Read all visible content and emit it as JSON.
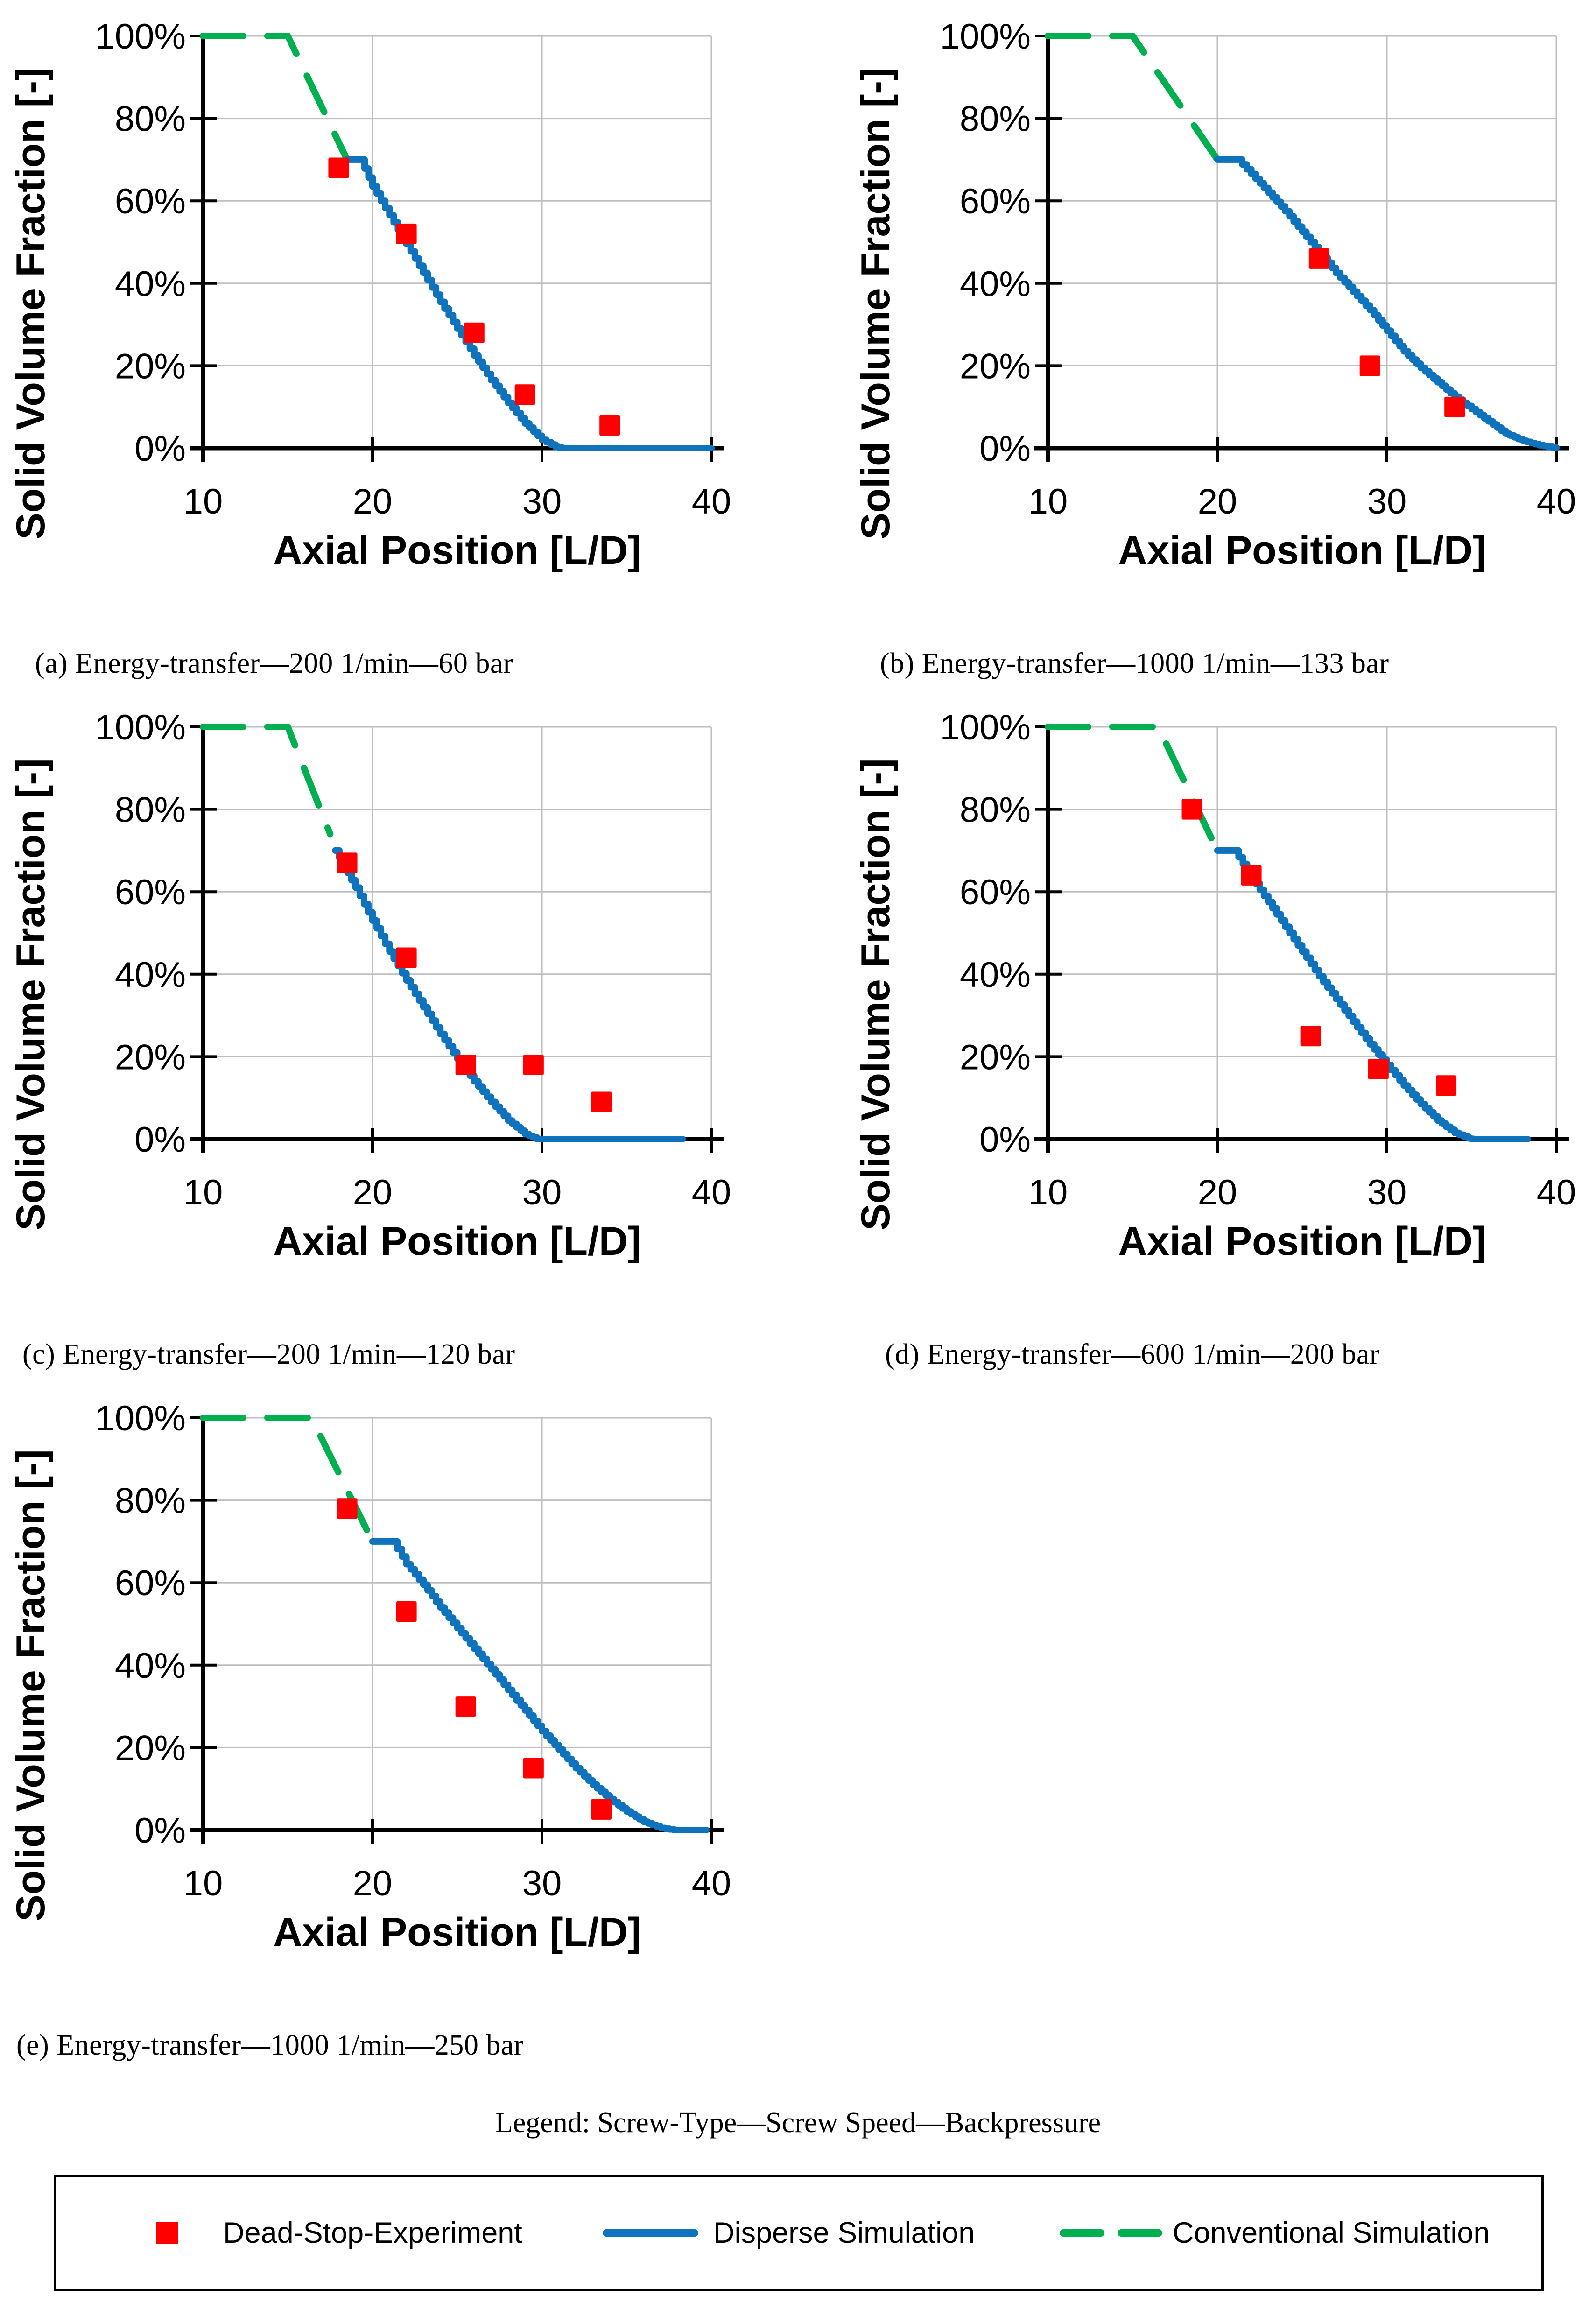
{
  "legend_title": "Legend: Screw-Type—Screw Speed—Backpressure",
  "legend": {
    "items": [
      {
        "label": "Dead-Stop-Experiment",
        "swatch": "red-square-marker",
        "color": "#FF0000"
      },
      {
        "label": "Disperse Simulation",
        "swatch": "blue-solid-line",
        "color": "#0E72BD"
      },
      {
        "label": "Conventional Simulation",
        "swatch": "green-dashed-line",
        "color": "#00AF50"
      }
    ]
  },
  "colors": {
    "experiment_red": "#FF0000",
    "disperse_blue": "#0E72BD",
    "conventional_green": "#00AF50",
    "gridline_gray": "#BFBFBF",
    "axis_black": "#000000"
  },
  "chart_data": [
    {
      "id": "a",
      "caption": "(a) Energy-transfer—200 1/min—60 bar",
      "type": "line+scatter",
      "xlabel": "Axial Position [L/D]",
      "ylabel": "Solid Volume Fraction [-]",
      "xlim": [
        10,
        40
      ],
      "ylim_percent": [
        0,
        100
      ],
      "xticks": [
        10,
        20,
        30,
        40
      ],
      "yticks_percent": [
        0,
        20,
        40,
        60,
        80,
        100
      ],
      "grid": true,
      "series": [
        {
          "name": "Dead-Stop-Experiment",
          "type": "scatter",
          "marker": "square",
          "color": "#FF0000",
          "points_percent": [
            [
              18,
              68
            ],
            [
              22,
              52
            ],
            [
              26,
              28
            ],
            [
              29,
              13
            ],
            [
              34,
              5.5
            ]
          ]
        },
        {
          "name": "Disperse Simulation",
          "type": "line",
          "line_style": "solid",
          "color": "#0E72BD",
          "points_percent": [
            [
              18.5,
              70
            ],
            [
              19.3,
              70
            ],
            [
              20,
              63.5
            ],
            [
              21,
              56.5
            ],
            [
              22,
              49.5
            ],
            [
              23,
              42.5
            ],
            [
              24,
              35.5
            ],
            [
              25,
              29
            ],
            [
              26,
              22.5
            ],
            [
              27,
              16.5
            ],
            [
              28,
              11
            ],
            [
              29,
              6
            ],
            [
              30,
              2
            ],
            [
              30.8,
              0.3
            ],
            [
              31.2,
              0
            ],
            [
              40,
              0
            ]
          ]
        },
        {
          "name": "Conventional Simulation",
          "type": "line",
          "line_style": "dashed",
          "color": "#00AF50",
          "points_percent": [
            [
              10,
              100
            ],
            [
              15,
              100
            ],
            [
              18.5,
              70
            ]
          ]
        }
      ]
    },
    {
      "id": "b",
      "caption": "(b) Energy-transfer—1000 1/min—133 bar",
      "type": "line+scatter",
      "xlabel": "Axial Position [L/D]",
      "ylabel": "Solid Volume Fraction [-]",
      "xlim": [
        10,
        40
      ],
      "ylim_percent": [
        0,
        100
      ],
      "xticks": [
        10,
        20,
        30,
        40
      ],
      "yticks_percent": [
        0,
        20,
        40,
        60,
        80,
        100
      ],
      "grid": true,
      "series": [
        {
          "name": "Dead-Stop-Experiment",
          "type": "scatter",
          "marker": "square",
          "color": "#FF0000",
          "points_percent": [
            [
              26,
              46
            ],
            [
              29,
              20
            ],
            [
              34,
              10
            ]
          ]
        },
        {
          "name": "Disperse Simulation",
          "type": "line",
          "line_style": "solid",
          "color": "#0E72BD",
          "points_percent": [
            [
              20,
              70
            ],
            [
              21.2,
              70
            ],
            [
              22,
              66.5
            ],
            [
              23,
              62
            ],
            [
              24,
              57.5
            ],
            [
              25,
              52.5
            ],
            [
              26,
              47.5
            ],
            [
              27,
              42.5
            ],
            [
              28,
              38
            ],
            [
              29,
              33.5
            ],
            [
              30,
              28.5
            ],
            [
              31,
              23.5
            ],
            [
              32,
              19.5
            ],
            [
              33,
              16
            ],
            [
              34,
              12.5
            ],
            [
              35,
              9.5
            ],
            [
              36,
              6.5
            ],
            [
              37,
              3.5
            ],
            [
              38,
              1.8
            ],
            [
              39,
              0.7
            ],
            [
              40,
              0
            ]
          ]
        },
        {
          "name": "Conventional Simulation",
          "type": "line",
          "line_style": "dashed",
          "color": "#00AF50",
          "points_percent": [
            [
              10,
              100
            ],
            [
              15,
              100
            ],
            [
              20,
              70
            ]
          ]
        }
      ]
    },
    {
      "id": "c",
      "caption": "(c) Energy-transfer—200 1/min—120 bar",
      "type": "line+scatter",
      "xlabel": "Axial Position [L/D]",
      "ylabel": "Solid Volume Fraction [-]",
      "xlim": [
        10,
        40
      ],
      "ylim_percent": [
        0,
        100
      ],
      "xticks": [
        10,
        20,
        30,
        40
      ],
      "yticks_percent": [
        0,
        20,
        40,
        60,
        80,
        100
      ],
      "grid": true,
      "series": [
        {
          "name": "Dead-Stop-Experiment",
          "type": "scatter",
          "marker": "square",
          "color": "#FF0000",
          "points_percent": [
            [
              18.5,
              67
            ],
            [
              22,
              44
            ],
            [
              25.5,
              18
            ],
            [
              29.5,
              18
            ],
            [
              33.5,
              9
            ]
          ]
        },
        {
          "name": "Disperse Simulation",
          "type": "line",
          "line_style": "solid",
          "color": "#0E72BD",
          "points_percent": [
            [
              17.8,
              70
            ],
            [
              19,
              61
            ],
            [
              20,
              53
            ],
            [
              21,
              45.5
            ],
            [
              22,
              38.5
            ],
            [
              23,
              32
            ],
            [
              24,
              25.5
            ],
            [
              25,
              19.5
            ],
            [
              26,
              14
            ],
            [
              27,
              9
            ],
            [
              28,
              4.5
            ],
            [
              29,
              1.2
            ],
            [
              29.7,
              0
            ],
            [
              38.3,
              0
            ]
          ]
        },
        {
          "name": "Conventional Simulation",
          "type": "line",
          "line_style": "dashed",
          "color": "#00AF50",
          "points_percent": [
            [
              10,
              100
            ],
            [
              15,
              100
            ],
            [
              17.5,
              74
            ]
          ]
        }
      ]
    },
    {
      "id": "d",
      "caption": "(d) Energy-transfer—600 1/min—200 bar",
      "type": "line+scatter",
      "xlabel": "Axial Position [L/D]",
      "ylabel": "Solid Volume Fraction [-]",
      "xlim": [
        10,
        40
      ],
      "ylim_percent": [
        0,
        100
      ],
      "xticks": [
        10,
        20,
        30,
        40
      ],
      "yticks_percent": [
        0,
        20,
        40,
        60,
        80,
        100
      ],
      "grid": true,
      "series": [
        {
          "name": "Dead-Stop-Experiment",
          "type": "scatter",
          "marker": "square",
          "color": "#FF0000",
          "points_percent": [
            [
              18.5,
              80
            ],
            [
              22,
              64
            ],
            [
              25.5,
              25
            ],
            [
              29.5,
              17
            ],
            [
              33.5,
              13
            ]
          ]
        },
        {
          "name": "Disperse Simulation",
          "type": "line",
          "line_style": "solid",
          "color": "#0E72BD",
          "points_percent": [
            [
              20,
              70
            ],
            [
              21,
              70
            ],
            [
              22,
              63.5
            ],
            [
              23,
              57.5
            ],
            [
              24,
              51.5
            ],
            [
              25,
              45.5
            ],
            [
              26,
              39.5
            ],
            [
              27,
              34
            ],
            [
              28,
              28.5
            ],
            [
              29,
              23
            ],
            [
              30,
              18
            ],
            [
              31,
              13
            ],
            [
              32,
              8.5
            ],
            [
              33,
              4.5
            ],
            [
              34,
              1.5
            ],
            [
              34.8,
              0.2
            ],
            [
              35.2,
              0
            ],
            [
              38.3,
              0
            ]
          ]
        },
        {
          "name": "Conventional Simulation",
          "type": "line",
          "line_style": "dashed",
          "color": "#00AF50",
          "points_percent": [
            [
              10,
              100
            ],
            [
              16.5,
              100
            ],
            [
              20,
              70
            ]
          ]
        }
      ]
    },
    {
      "id": "e",
      "caption": "(e) Energy-transfer—1000 1/min—250 bar",
      "type": "line+scatter",
      "xlabel": "Axial Position [L/D]",
      "ylabel": "Solid Volume Fraction [-]",
      "xlim": [
        10,
        40
      ],
      "ylim_percent": [
        0,
        100
      ],
      "xticks": [
        10,
        20,
        30,
        40
      ],
      "yticks_percent": [
        0,
        20,
        40,
        60,
        80,
        100
      ],
      "grid": true,
      "series": [
        {
          "name": "Dead-Stop-Experiment",
          "type": "scatter",
          "marker": "square",
          "color": "#FF0000",
          "points_percent": [
            [
              18.5,
              78
            ],
            [
              22,
              53
            ],
            [
              25.5,
              30
            ],
            [
              29.5,
              15
            ],
            [
              33.5,
              5
            ]
          ]
        },
        {
          "name": "Disperse Simulation",
          "type": "line",
          "line_style": "solid",
          "color": "#0E72BD",
          "points_percent": [
            [
              20,
              70
            ],
            [
              21.2,
              70
            ],
            [
              22,
              64.5
            ],
            [
              23,
              59.5
            ],
            [
              24,
              54
            ],
            [
              25,
              49
            ],
            [
              26,
              44
            ],
            [
              27,
              39
            ],
            [
              28,
              34
            ],
            [
              29,
              29
            ],
            [
              30,
              24
            ],
            [
              31,
              19.5
            ],
            [
              32,
              15
            ],
            [
              33,
              11
            ],
            [
              34,
              7.5
            ],
            [
              35,
              4.5
            ],
            [
              36,
              2
            ],
            [
              37,
              0.5
            ],
            [
              37.8,
              0
            ],
            [
              39.7,
              0
            ]
          ]
        },
        {
          "name": "Conventional Simulation",
          "type": "line",
          "line_style": "dashed",
          "color": "#00AF50",
          "points_percent": [
            [
              10,
              100
            ],
            [
              16.4,
              100
            ],
            [
              20,
              70
            ]
          ]
        }
      ]
    }
  ]
}
